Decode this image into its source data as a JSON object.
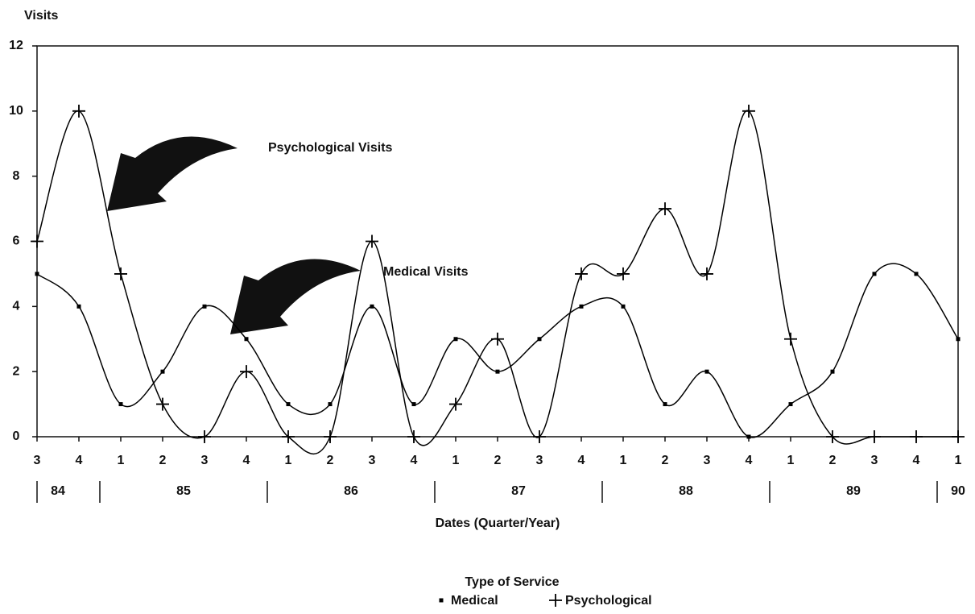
{
  "chart_data": {
    "type": "line",
    "y_label": "Visits",
    "x_label": "Dates (Quarter/Year)",
    "categories": [
      "3",
      "4",
      "1",
      "2",
      "3",
      "4",
      "1",
      "2",
      "3",
      "4",
      "1",
      "2",
      "3",
      "4",
      "1",
      "2",
      "3",
      "4",
      "1",
      "2",
      "3",
      "4",
      "1"
    ],
    "year_labels": [
      "84",
      "85",
      "86",
      "87",
      "88",
      "89",
      "90"
    ],
    "series": [
      {
        "name": "Medical",
        "marker": "square",
        "color": "#000000",
        "values": [
          5,
          4,
          1,
          2,
          4,
          3,
          1,
          1,
          4,
          1,
          3,
          2,
          3,
          4,
          4,
          1,
          2,
          0,
          1,
          2,
          5,
          5,
          3
        ]
      },
      {
        "name": "Psychological",
        "marker": "plus",
        "color": "#000000",
        "values": [
          6,
          10,
          5,
          1,
          0,
          2,
          0,
          0,
          6,
          0,
          1,
          3,
          0,
          5,
          5,
          7,
          5,
          10,
          3,
          0,
          0,
          0,
          0
        ]
      }
    ],
    "annotations": [
      "Psychological Visits",
      "Medical Visits"
    ],
    "legend_title": "Type of Service",
    "ylim": [
      0,
      12
    ],
    "yticks": [
      0,
      2,
      4,
      6,
      8,
      10,
      12
    ]
  }
}
